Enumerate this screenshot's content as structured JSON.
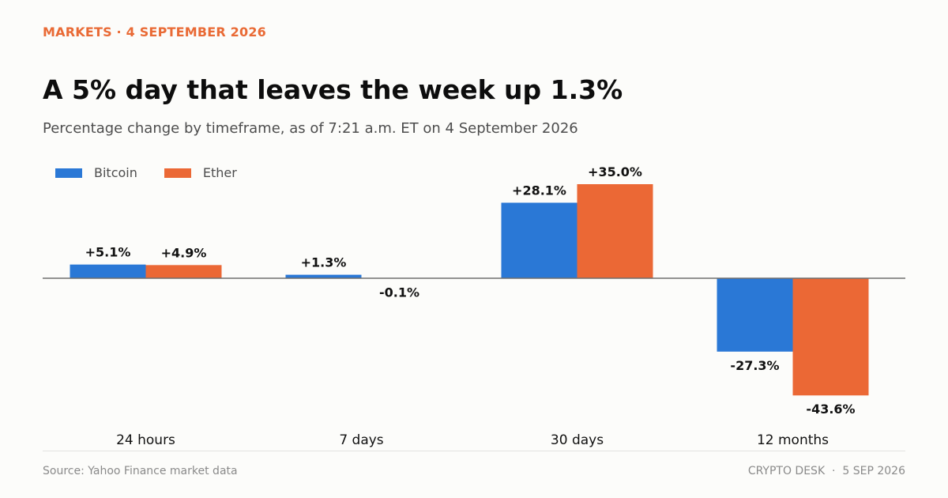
{
  "header": {
    "kicker": "MARKETS · 4 SEPTEMBER 2026",
    "title": "A 5% day that leaves the week up 1.3%",
    "subtitle": "Percentage change by timeframe, as of 7:21 a.m. ET on 4 September 2026"
  },
  "footer": {
    "source": "Source: Yahoo Finance market data",
    "credit": "CRYPTO DESK  ·  5 SEP 2026"
  },
  "colors": {
    "bitcoin": "#2a78d6",
    "ether": "#eb6835",
    "zero_line": "#6e6e6e"
  },
  "chart_data": {
    "type": "bar",
    "categories": [
      "24 hours",
      "7 days",
      "30 days",
      "12 months"
    ],
    "series": [
      {
        "name": "Bitcoin",
        "values": [
          5.1,
          1.3,
          28.1,
          -27.3
        ],
        "labels": [
          "+5.1%",
          "+1.3%",
          "+28.1%",
          "-27.3%"
        ]
      },
      {
        "name": "Ether",
        "values": [
          4.9,
          -0.1,
          35.0,
          -43.6
        ],
        "labels": [
          "+4.9%",
          "-0.1%",
          "+35.0%",
          "-43.6%"
        ]
      }
    ],
    "title": "A 5% day that leaves the week up 1.3%",
    "subtitle": "Percentage change by timeframe, as of 7:21 a.m. ET on 4 September 2026",
    "legend_position": "top-left",
    "grid": false,
    "ylim": [
      -43.6,
      35.0
    ]
  }
}
